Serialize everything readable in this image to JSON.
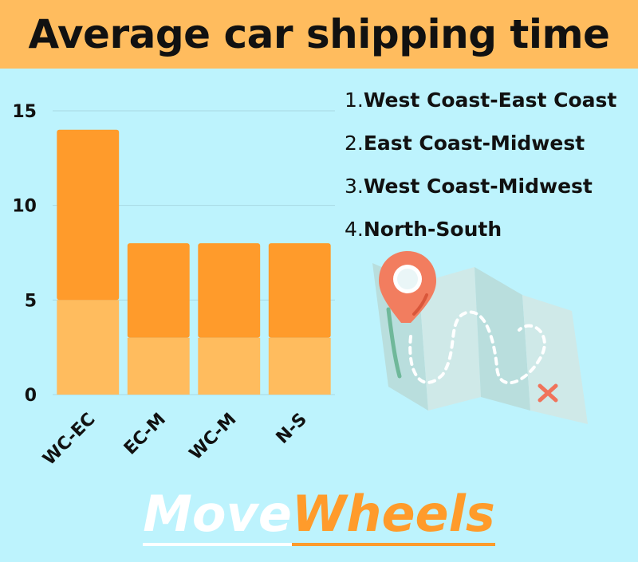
{
  "header": {
    "title": "Average car shipping time"
  },
  "chart_data": {
    "type": "bar",
    "stacked": true,
    "categories": [
      "WC-EC",
      "EC-M",
      "WC-M",
      "N-S"
    ],
    "series": [
      {
        "values": [
          5,
          3,
          3,
          3
        ],
        "color": "#ffbc5e"
      },
      {
        "values": [
          9,
          5,
          5,
          5
        ],
        "color": "#ff9b2b"
      }
    ],
    "totals": [
      14,
      8,
      8,
      8
    ],
    "yticks": [
      0,
      5,
      10,
      15
    ],
    "ylim": [
      0,
      15
    ],
    "grid": true,
    "tick_label_rotation": -45
  },
  "legend": {
    "items": [
      {
        "num": "1.",
        "text": "West Coast-East Coast"
      },
      {
        "num": "2.",
        "text": "East Coast-Midwest"
      },
      {
        "num": "3.",
        "text": "West Coast-Midwest"
      },
      {
        "num": "4.",
        "text": "North-South"
      }
    ]
  },
  "illustration": {
    "icon": "map-with-pin-icon"
  },
  "brand": {
    "part1": "Move",
    "part2": "Wheels"
  }
}
